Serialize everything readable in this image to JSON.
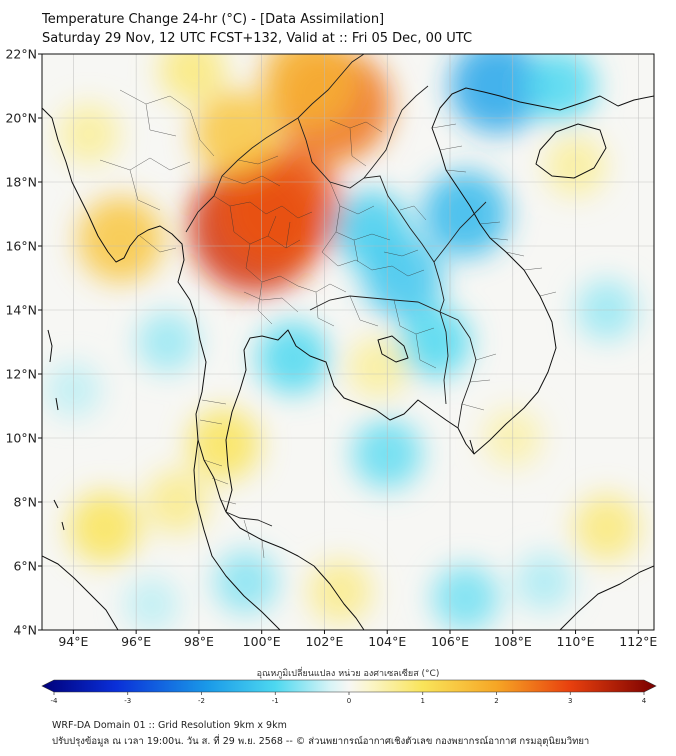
{
  "title": {
    "line1": "Temperature Change 24-hr (°C) - [Data Assimilation]",
    "line2": "Saturday 29 Nov, 12 UTC FCST+132, Valid at :: Fri 05 Dec, 00 UTC"
  },
  "map": {
    "lon_range": [
      93,
      112.5
    ],
    "lat_range": [
      4,
      22
    ],
    "lat_labels": [
      "22°N",
      "20°N",
      "18°N",
      "16°N",
      "14°N",
      "12°N",
      "10°N",
      "8°N",
      "6°N",
      "4°N"
    ],
    "lon_labels": [
      "94°E",
      "96°E",
      "98°E",
      "100°E",
      "102°E",
      "104°E",
      "106°E",
      "108°E",
      "110°E",
      "112°E"
    ],
    "lat_values": [
      22,
      20,
      18,
      16,
      14,
      12,
      10,
      8,
      6,
      4
    ],
    "lon_values": [
      94,
      96,
      98,
      100,
      102,
      104,
      106,
      108,
      110,
      112
    ],
    "fields": [
      {
        "lon": 99.8,
        "lat": 16.6,
        "value": 3.2
      },
      {
        "lon": 100.6,
        "lat": 17.2,
        "value": 2.8
      },
      {
        "lon": 102.3,
        "lat": 20.4,
        "value": 2.5
      },
      {
        "lon": 101.5,
        "lat": 21.2,
        "value": 1.8
      },
      {
        "lon": 95.5,
        "lat": 16.2,
        "value": 1.5
      },
      {
        "lon": 94.5,
        "lat": 19.5,
        "value": 0.6
      },
      {
        "lon": 99.2,
        "lat": 19.5,
        "value": 1.5
      },
      {
        "lon": 97.8,
        "lat": 21.5,
        "value": 0.8
      },
      {
        "lon": 98.8,
        "lat": 9.8,
        "value": 1.0
      },
      {
        "lon": 97.3,
        "lat": 8.0,
        "value": 0.7
      },
      {
        "lon": 95.0,
        "lat": 7.2,
        "value": 1.0
      },
      {
        "lon": 102.5,
        "lat": 5.2,
        "value": 0.7
      },
      {
        "lon": 110.0,
        "lat": 18.5,
        "value": 0.6
      },
      {
        "lon": 111.0,
        "lat": 7.2,
        "value": 0.8
      },
      {
        "lon": 108.0,
        "lat": 10.0,
        "value": 0.5
      },
      {
        "lon": 103.7,
        "lat": 12.2,
        "value": 0.6
      },
      {
        "lon": 107.5,
        "lat": 21.0,
        "value": -1.8
      },
      {
        "lon": 109.5,
        "lat": 21.0,
        "value": -1.0
      },
      {
        "lon": 106.5,
        "lat": 17.0,
        "value": -1.5
      },
      {
        "lon": 104.5,
        "lat": 15.0,
        "value": -1.3
      },
      {
        "lon": 103.5,
        "lat": 16.5,
        "value": -1.2
      },
      {
        "lon": 105.5,
        "lat": 13.0,
        "value": -1.0
      },
      {
        "lon": 101.0,
        "lat": 12.5,
        "value": -1.0
      },
      {
        "lon": 104.0,
        "lat": 9.5,
        "value": -0.9
      },
      {
        "lon": 99.5,
        "lat": 5.5,
        "value": -0.7
      },
      {
        "lon": 106.5,
        "lat": 5.0,
        "value": -0.8
      },
      {
        "lon": 97.0,
        "lat": 13.0,
        "value": -0.6
      },
      {
        "lon": 94.0,
        "lat": 11.5,
        "value": -0.4
      },
      {
        "lon": 111.0,
        "lat": 14.0,
        "value": -0.6
      },
      {
        "lon": 96.5,
        "lat": 4.8,
        "value": -0.4
      },
      {
        "lon": 109.0,
        "lat": 5.5,
        "value": -0.5
      }
    ]
  },
  "colorbar": {
    "title": "อุณหภูมิเปลี่ยนแปลง หน่วย องศาเซลเซียส (°C)",
    "min": -4,
    "max": 4,
    "tick_values": [
      -4,
      -3,
      -2,
      -1,
      0,
      1,
      2,
      3,
      4
    ],
    "tick_labels": [
      "-4",
      "-3",
      "-2",
      "-1",
      "0",
      "1",
      "2",
      "3",
      "4"
    ]
  },
  "footer": {
    "line1": "WRF-DA Domain 01 :: Grid Resolution 9km x 9km",
    "line2": "ปรับปรุงข้อมูล ณ เวลา 19:00น. วัน ส. ที่ 29 พ.ย. 2568 -- © ส่วนพยากรณ์อากาศเชิงตัวเลข กองพยากรณ์อากาศ กรมอุตุนิยมวิทยา"
  },
  "colors": {
    "coastline": "#111111",
    "grid": "#bbbbbb",
    "neutral": "#f7f7f4"
  }
}
